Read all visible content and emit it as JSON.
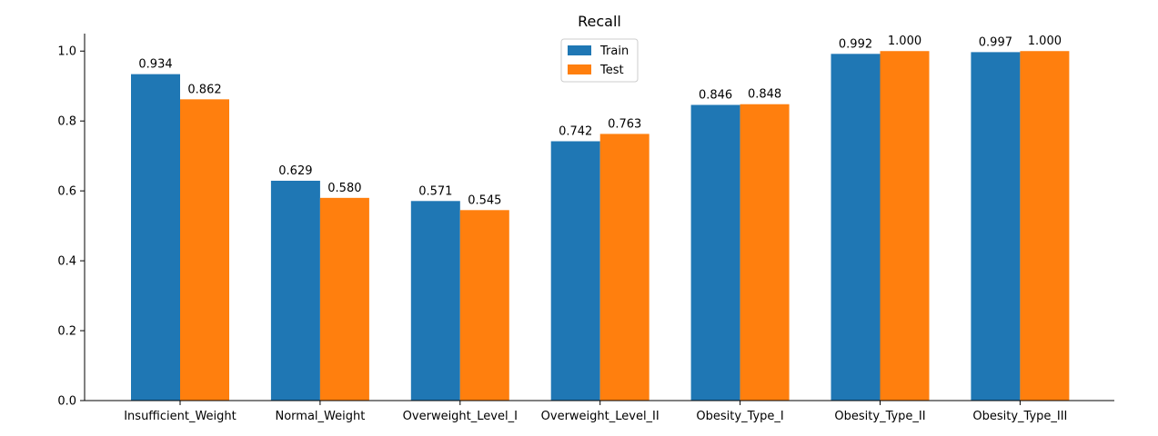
{
  "chart_data": {
    "type": "bar",
    "title": "Recall",
    "xlabel": "",
    "ylabel": "",
    "categories": [
      "Insufficient_Weight",
      "Normal_Weight",
      "Overweight_Level_I",
      "Overweight_Level_II",
      "Obesity_Type_I",
      "Obesity_Type_II",
      "Obesity_Type_III"
    ],
    "series": [
      {
        "name": "Train",
        "color": "#1f77b4",
        "values": [
          0.934,
          0.629,
          0.571,
          0.742,
          0.846,
          0.992,
          0.997
        ],
        "labels": [
          "0.934",
          "0.629",
          "0.571",
          "0.742",
          "0.846",
          "0.992",
          "0.997"
        ]
      },
      {
        "name": "Test",
        "color": "#ff7f0e",
        "values": [
          0.862,
          0.58,
          0.545,
          0.763,
          0.848,
          1.0,
          1.0
        ],
        "labels": [
          "0.862",
          "0.580",
          "0.545",
          "0.763",
          "0.848",
          "1.000",
          "1.000"
        ]
      }
    ],
    "ylim": [
      0,
      1.05
    ],
    "yticks": [
      0.0,
      0.2,
      0.4,
      0.6,
      0.8,
      1.0
    ],
    "ytick_labels": [
      "0.0",
      "0.2",
      "0.4",
      "0.6",
      "0.8",
      "1.0"
    ],
    "grid": false,
    "legend_position": "top-center"
  }
}
